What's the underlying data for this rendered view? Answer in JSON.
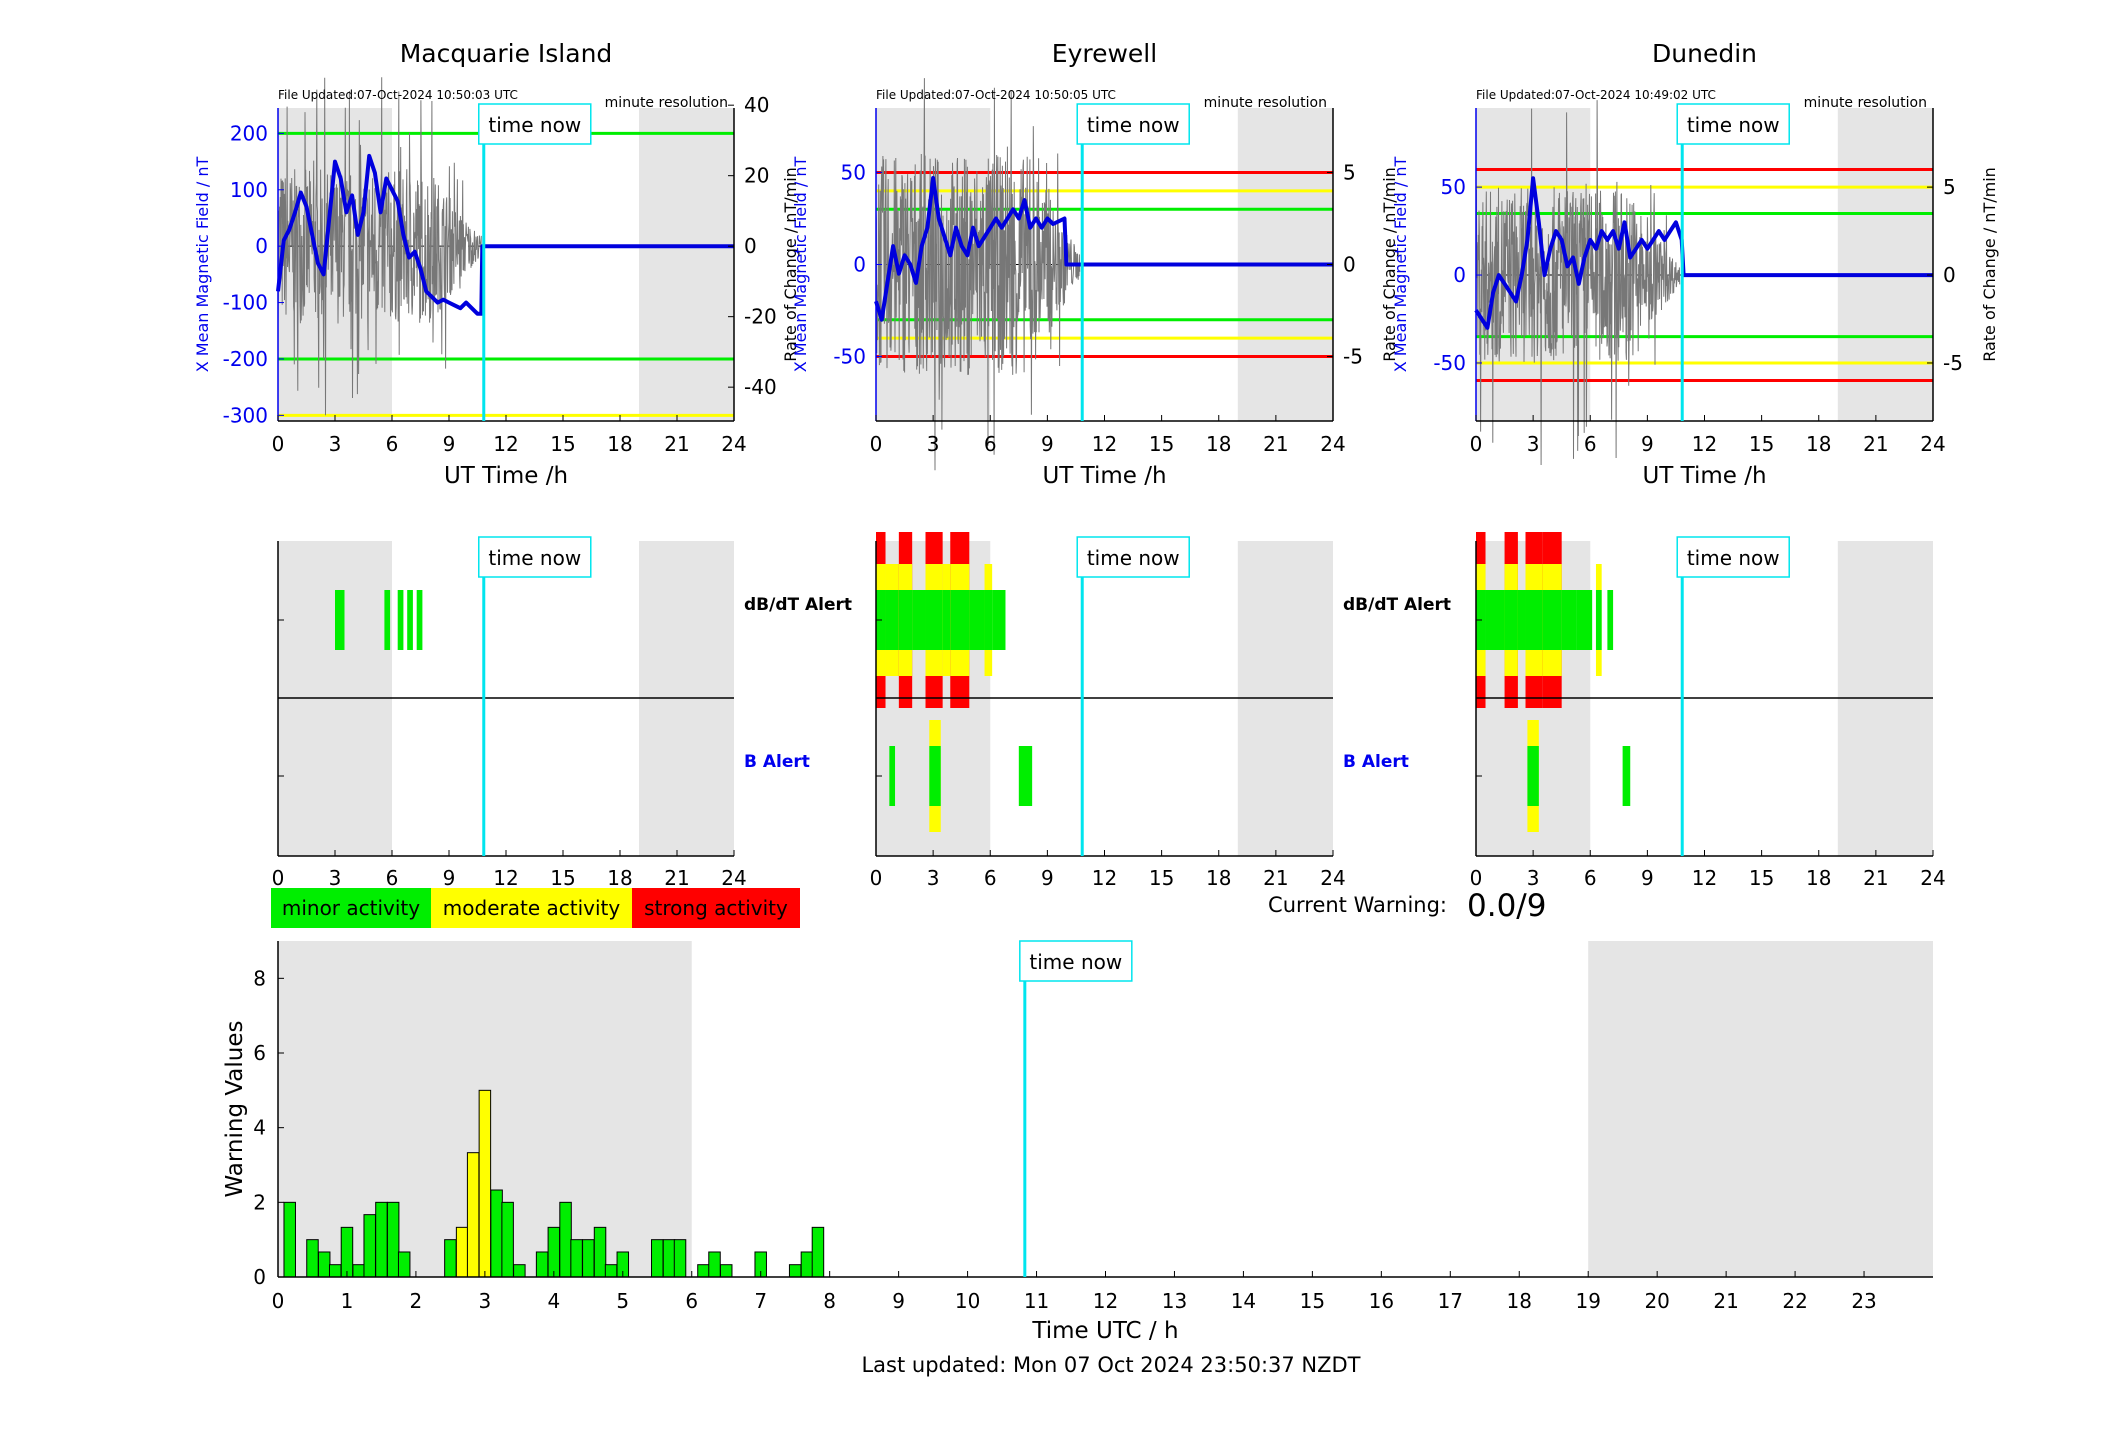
{
  "colors": {
    "field": "#0000dd",
    "rate": "#777777",
    "green": "#00ee00",
    "yellow": "#ffff00",
    "red": "#ff0000",
    "now": "#00e5ee",
    "night": "#e5e5e5",
    "tick_blue": "#0000ee"
  },
  "now_label": "time now",
  "x_axis_label": "UT Time /h",
  "x_ticks": [
    "0",
    "3",
    "6",
    "9",
    "12",
    "15",
    "18",
    "21",
    "24"
  ],
  "x_tick_values": [
    0,
    3,
    6,
    9,
    12,
    15,
    18,
    21,
    24
  ],
  "resolution_label": "minute resolution",
  "left_axis_label": "X Mean Magnetic Field / nT",
  "right_axis_label": "Rate of Change / nT/min",
  "dbdt_label": "dB/dT Alert",
  "b_label": "B Alert",
  "time_now_hours": 10.83,
  "stations": [
    {
      "name": "Macquarie Island",
      "file_updated": "File Updated:07-Oct-2024 10:50:03 UTC",
      "night_ranges": [
        [
          0,
          6
        ],
        [
          19,
          24
        ]
      ],
      "left_ticks": [
        "200",
        "100",
        "0",
        "-100",
        "-200",
        "-300"
      ],
      "left_tick_values": [
        200,
        100,
        0,
        -100,
        -200,
        -300
      ],
      "left_ylim": [
        -310,
        245
      ],
      "right_ticks": [
        "40",
        "20",
        "0",
        "-20",
        "-40"
      ],
      "right_tick_values": [
        40,
        20,
        0,
        -20,
        -40
      ],
      "right_ylim": [
        -49.6,
        39.2
      ],
      "threshold_lines": [
        {
          "value": 200,
          "color": "green"
        },
        {
          "value": -200,
          "color": "green"
        },
        {
          "value": -300,
          "color": "yellow"
        }
      ],
      "field_series": [
        [
          0,
          -80
        ],
        [
          0.3,
          10
        ],
        [
          0.6,
          30
        ],
        [
          0.9,
          60
        ],
        [
          1.2,
          95
        ],
        [
          1.5,
          70
        ],
        [
          1.8,
          20
        ],
        [
          2.1,
          -30
        ],
        [
          2.4,
          -50
        ],
        [
          2.7,
          50
        ],
        [
          3,
          150
        ],
        [
          3.3,
          120
        ],
        [
          3.6,
          60
        ],
        [
          3.9,
          90
        ],
        [
          4.2,
          20
        ],
        [
          4.5,
          60
        ],
        [
          4.8,
          160
        ],
        [
          5.1,
          130
        ],
        [
          5.4,
          60
        ],
        [
          5.7,
          120
        ],
        [
          6.0,
          100
        ],
        [
          6.3,
          80
        ],
        [
          6.6,
          20
        ],
        [
          6.9,
          -20
        ],
        [
          7.2,
          -10
        ],
        [
          7.5,
          -40
        ],
        [
          7.8,
          -80
        ],
        [
          8.1,
          -90
        ],
        [
          8.4,
          -100
        ],
        [
          8.7,
          -95
        ],
        [
          9.0,
          -100
        ],
        [
          9.3,
          -105
        ],
        [
          9.6,
          -110
        ],
        [
          9.9,
          -100
        ],
        [
          10.2,
          -110
        ],
        [
          10.5,
          -120
        ],
        [
          10.7,
          -120
        ],
        [
          10.75,
          0
        ],
        [
          24,
          0
        ]
      ],
      "rate_amplitude": 22,
      "dbdt_alerts": [
        {
          "start": 3.0,
          "end": 3.5,
          "level": 1
        },
        {
          "start": 5.6,
          "end": 5.9,
          "level": 1
        },
        {
          "start": 6.3,
          "end": 6.6,
          "level": 1
        },
        {
          "start": 6.8,
          "end": 7.1,
          "level": 1
        },
        {
          "start": 7.3,
          "end": 7.6,
          "level": 1
        }
      ],
      "b_alerts": []
    },
    {
      "name": "Eyrewell",
      "file_updated": "File Updated:07-Oct-2024 10:50:05 UTC",
      "night_ranges": [
        [
          0,
          6
        ],
        [
          19,
          24
        ]
      ],
      "left_ticks": [
        "50",
        "0",
        "-50"
      ],
      "left_tick_values": [
        50,
        0,
        -50
      ],
      "left_ylim": [
        -85,
        85
      ],
      "right_ticks": [
        "5",
        "0",
        "-5"
      ],
      "right_tick_values": [
        5,
        0,
        -5
      ],
      "right_ylim": [
        -8.5,
        8.5
      ],
      "threshold_lines": [
        {
          "value": 50,
          "color": "red"
        },
        {
          "value": 40,
          "color": "yellow"
        },
        {
          "value": 30,
          "color": "green"
        },
        {
          "value": -30,
          "color": "green"
        },
        {
          "value": -40,
          "color": "yellow"
        },
        {
          "value": -50,
          "color": "red"
        }
      ],
      "field_series": [
        [
          0,
          -20
        ],
        [
          0.3,
          -30
        ],
        [
          0.6,
          -10
        ],
        [
          0.9,
          10
        ],
        [
          1.2,
          -5
        ],
        [
          1.5,
          5
        ],
        [
          1.8,
          0
        ],
        [
          2.1,
          -10
        ],
        [
          2.4,
          10
        ],
        [
          2.7,
          20
        ],
        [
          3.0,
          47
        ],
        [
          3.3,
          25
        ],
        [
          3.6,
          15
        ],
        [
          3.9,
          5
        ],
        [
          4.2,
          20
        ],
        [
          4.5,
          10
        ],
        [
          4.8,
          5
        ],
        [
          5.1,
          20
        ],
        [
          5.4,
          10
        ],
        [
          5.7,
          15
        ],
        [
          6.0,
          20
        ],
        [
          6.3,
          25
        ],
        [
          6.6,
          20
        ],
        [
          6.9,
          25
        ],
        [
          7.2,
          30
        ],
        [
          7.5,
          25
        ],
        [
          7.8,
          35
        ],
        [
          8.1,
          20
        ],
        [
          8.4,
          25
        ],
        [
          8.7,
          20
        ],
        [
          9.0,
          25
        ],
        [
          9.3,
          22
        ],
        [
          9.9,
          25
        ],
        [
          10.0,
          0
        ],
        [
          24,
          0
        ]
      ],
      "rate_amplitude": 6,
      "dbdt_alerts": [
        {
          "start": 0.0,
          "end": 0.5,
          "level": 3
        },
        {
          "start": 0.5,
          "end": 1.2,
          "level": 2
        },
        {
          "start": 1.2,
          "end": 1.9,
          "level": 3
        },
        {
          "start": 1.9,
          "end": 2.6,
          "level": 1
        },
        {
          "start": 2.6,
          "end": 3.5,
          "level": 3
        },
        {
          "start": 3.5,
          "end": 3.9,
          "level": 2
        },
        {
          "start": 3.9,
          "end": 4.9,
          "level": 3
        },
        {
          "start": 4.9,
          "end": 5.7,
          "level": 1
        },
        {
          "start": 5.7,
          "end": 6.1,
          "level": 2
        },
        {
          "start": 6.1,
          "end": 6.8,
          "level": 1
        }
      ],
      "b_alerts": [
        {
          "start": 0.7,
          "end": 1.0,
          "level": 1
        },
        {
          "start": 2.8,
          "end": 3.4,
          "level": 2
        },
        {
          "start": 7.5,
          "end": 8.2,
          "level": 1
        }
      ]
    },
    {
      "name": "Dunedin",
      "file_updated": "File Updated:07-Oct-2024 10:49:02 UTC",
      "night_ranges": [
        [
          0,
          6
        ],
        [
          19,
          24
        ]
      ],
      "left_ticks": [
        "50",
        "0",
        "-50"
      ],
      "left_tick_values": [
        50,
        0,
        -50
      ],
      "left_ylim": [
        -83,
        95
      ],
      "right_ticks": [
        "5",
        "0",
        "-5"
      ],
      "right_tick_values": [
        5,
        0,
        -5
      ],
      "right_ylim": [
        -8.3,
        9.5
      ],
      "threshold_lines": [
        {
          "value": 60,
          "color": "red"
        },
        {
          "value": 50,
          "color": "yellow"
        },
        {
          "value": 35,
          "color": "green"
        },
        {
          "value": -35,
          "color": "green"
        },
        {
          "value": -50,
          "color": "yellow"
        },
        {
          "value": -60,
          "color": "red"
        }
      ],
      "field_series": [
        [
          0,
          -20
        ],
        [
          0.3,
          -25
        ],
        [
          0.6,
          -30
        ],
        [
          0.9,
          -10
        ],
        [
          1.2,
          0
        ],
        [
          1.5,
          -5
        ],
        [
          1.8,
          -10
        ],
        [
          2.1,
          -15
        ],
        [
          2.4,
          0
        ],
        [
          2.7,
          20
        ],
        [
          3.0,
          55
        ],
        [
          3.3,
          30
        ],
        [
          3.6,
          0
        ],
        [
          3.9,
          15
        ],
        [
          4.2,
          25
        ],
        [
          4.5,
          20
        ],
        [
          4.8,
          5
        ],
        [
          5.1,
          10
        ],
        [
          5.4,
          -5
        ],
        [
          5.7,
          10
        ],
        [
          6.0,
          20
        ],
        [
          6.3,
          15
        ],
        [
          6.6,
          25
        ],
        [
          6.9,
          20
        ],
        [
          7.2,
          25
        ],
        [
          7.5,
          15
        ],
        [
          7.8,
          30
        ],
        [
          8.1,
          10
        ],
        [
          8.4,
          15
        ],
        [
          8.7,
          20
        ],
        [
          9.0,
          15
        ],
        [
          9.3,
          20
        ],
        [
          9.6,
          25
        ],
        [
          9.9,
          20
        ],
        [
          10.2,
          25
        ],
        [
          10.5,
          30
        ],
        [
          10.8,
          20
        ],
        [
          10.9,
          0
        ],
        [
          24,
          0
        ]
      ],
      "rate_amplitude": 5,
      "dbdt_alerts": [
        {
          "start": 0.0,
          "end": 0.5,
          "level": 3
        },
        {
          "start": 0.5,
          "end": 1.5,
          "level": 1
        },
        {
          "start": 1.5,
          "end": 2.2,
          "level": 3
        },
        {
          "start": 2.2,
          "end": 2.6,
          "level": 1
        },
        {
          "start": 2.6,
          "end": 3.5,
          "level": 3
        },
        {
          "start": 3.5,
          "end": 4.5,
          "level": 3
        },
        {
          "start": 4.5,
          "end": 5.3,
          "level": 1
        },
        {
          "start": 5.3,
          "end": 6.1,
          "level": 1
        },
        {
          "start": 6.3,
          "end": 6.6,
          "level": 2
        },
        {
          "start": 6.9,
          "end": 7.2,
          "level": 1
        }
      ],
      "b_alerts": [
        {
          "start": 2.7,
          "end": 3.3,
          "level": 2
        },
        {
          "start": 7.7,
          "end": 8.1,
          "level": 1
        }
      ]
    }
  ],
  "legend": [
    {
      "label": "minor activity",
      "color": "green"
    },
    {
      "label": "moderate activity",
      "color": "yellow"
    },
    {
      "label": "strong activity",
      "color": "red"
    }
  ],
  "current_warning_label": "Current Warning:",
  "current_warning_value": "0.0/9",
  "chart_data": {
    "type": "bar",
    "xlabel": "Time UTC / h",
    "ylabel": "Warning Values",
    "xlim": [
      0,
      24
    ],
    "ylim": [
      0,
      9
    ],
    "x_ticks": [
      "0",
      "1",
      "2",
      "3",
      "4",
      "5",
      "6",
      "7",
      "8",
      "9",
      "10",
      "11",
      "12",
      "13",
      "14",
      "15",
      "16",
      "17",
      "18",
      "19",
      "20",
      "21",
      "22",
      "23"
    ],
    "y_ticks": [
      "0",
      "2",
      "4",
      "6",
      "8"
    ],
    "night_ranges": [
      [
        0,
        6
      ],
      [
        19,
        24
      ]
    ],
    "bars": [
      {
        "x": 0.17,
        "value": 2.0,
        "color": "green"
      },
      {
        "x": 0.5,
        "value": 1.0,
        "color": "green"
      },
      {
        "x": 0.67,
        "value": 0.67,
        "color": "green"
      },
      {
        "x": 0.83,
        "value": 0.33,
        "color": "green"
      },
      {
        "x": 1.0,
        "value": 1.33,
        "color": "green"
      },
      {
        "x": 1.17,
        "value": 0.33,
        "color": "green"
      },
      {
        "x": 1.33,
        "value": 1.67,
        "color": "green"
      },
      {
        "x": 1.5,
        "value": 2.0,
        "color": "green"
      },
      {
        "x": 1.67,
        "value": 2.0,
        "color": "green"
      },
      {
        "x": 1.83,
        "value": 0.67,
        "color": "green"
      },
      {
        "x": 2.5,
        "value": 1.0,
        "color": "green"
      },
      {
        "x": 2.67,
        "value": 1.33,
        "color": "yellow"
      },
      {
        "x": 2.83,
        "value": 3.33,
        "color": "yellow"
      },
      {
        "x": 3.0,
        "value": 5.0,
        "color": "yellow"
      },
      {
        "x": 3.17,
        "value": 2.33,
        "color": "green"
      },
      {
        "x": 3.33,
        "value": 2.0,
        "color": "green"
      },
      {
        "x": 3.5,
        "value": 0.33,
        "color": "green"
      },
      {
        "x": 3.83,
        "value": 0.67,
        "color": "green"
      },
      {
        "x": 4.0,
        "value": 1.33,
        "color": "green"
      },
      {
        "x": 4.17,
        "value": 2.0,
        "color": "green"
      },
      {
        "x": 4.33,
        "value": 1.0,
        "color": "green"
      },
      {
        "x": 4.5,
        "value": 1.0,
        "color": "green"
      },
      {
        "x": 4.67,
        "value": 1.33,
        "color": "green"
      },
      {
        "x": 4.83,
        "value": 0.33,
        "color": "green"
      },
      {
        "x": 5.0,
        "value": 0.67,
        "color": "green"
      },
      {
        "x": 5.5,
        "value": 1.0,
        "color": "green"
      },
      {
        "x": 5.67,
        "value": 1.0,
        "color": "green"
      },
      {
        "x": 5.83,
        "value": 1.0,
        "color": "green"
      },
      {
        "x": 6.17,
        "value": 0.33,
        "color": "green"
      },
      {
        "x": 6.33,
        "value": 0.67,
        "color": "green"
      },
      {
        "x": 6.5,
        "value": 0.33,
        "color": "green"
      },
      {
        "x": 7.0,
        "value": 0.67,
        "color": "green"
      },
      {
        "x": 7.5,
        "value": 0.33,
        "color": "green"
      },
      {
        "x": 7.67,
        "value": 0.67,
        "color": "green"
      },
      {
        "x": 7.83,
        "value": 1.33,
        "color": "green"
      }
    ],
    "time_now": 10.83
  },
  "footer": "Last updated: Mon 07 Oct 2024 23:50:37 NZDT"
}
